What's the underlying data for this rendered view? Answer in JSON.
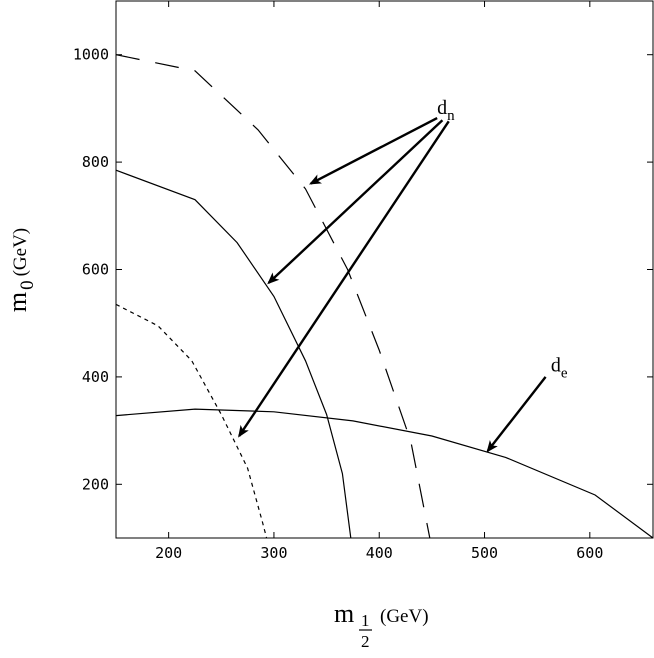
{
  "chart_data": {
    "type": "line",
    "xlabel": {
      "main": "m",
      "sub_num": "1",
      "sub_den": "2",
      "unit": "(GeV)"
    },
    "ylabel": {
      "main": "m",
      "sub": "0",
      "unit": "(GeV)"
    },
    "xlim": [
      150,
      660
    ],
    "ylim": [
      100,
      1100
    ],
    "xticks": [
      200,
      300,
      400,
      500,
      600
    ],
    "yticks": [
      200,
      400,
      600,
      800,
      1000
    ],
    "grid": false,
    "series": [
      {
        "style": "long-dash",
        "points": [
          [
            150,
            1000
          ],
          [
            225,
            970
          ],
          [
            285,
            860
          ],
          [
            330,
            750
          ],
          [
            370,
            600
          ],
          [
            400,
            450
          ],
          [
            430,
            280
          ],
          [
            448,
            100
          ]
        ]
      },
      {
        "style": "solid",
        "points": [
          [
            150,
            785
          ],
          [
            225,
            730
          ],
          [
            265,
            650
          ],
          [
            300,
            550
          ],
          [
            330,
            430
          ],
          [
            350,
            330
          ],
          [
            365,
            220
          ],
          [
            373,
            100
          ]
        ]
      },
      {
        "style": "short-dash",
        "points": [
          [
            150,
            535
          ],
          [
            190,
            495
          ],
          [
            222,
            430
          ],
          [
            250,
            330
          ],
          [
            275,
            230
          ],
          [
            289,
            130
          ],
          [
            293,
            100
          ]
        ]
      },
      {
        "style": "solid",
        "points": [
          [
            150,
            328
          ],
          [
            225,
            340
          ],
          [
            300,
            335
          ],
          [
            375,
            318
          ],
          [
            450,
            290
          ],
          [
            520,
            250
          ],
          [
            605,
            180
          ],
          [
            660,
            100
          ]
        ]
      }
    ],
    "annotations": [
      {
        "label": "d",
        "sub": "n",
        "text_at": [
          455,
          890
        ],
        "arrows": [
          {
            "from": [
              455,
              882
            ],
            "to": [
              335,
              760
            ]
          },
          {
            "from": [
              460,
              878
            ],
            "to": [
              295,
              575
            ]
          },
          {
            "from": [
              466,
              876
            ],
            "to": [
              267,
              290
            ]
          }
        ]
      },
      {
        "label": "d",
        "sub": "e",
        "text_at": [
          563,
          410
        ],
        "arrows": [
          {
            "from": [
              558,
              400
            ],
            "to": [
              503,
              262
            ]
          }
        ]
      }
    ]
  }
}
